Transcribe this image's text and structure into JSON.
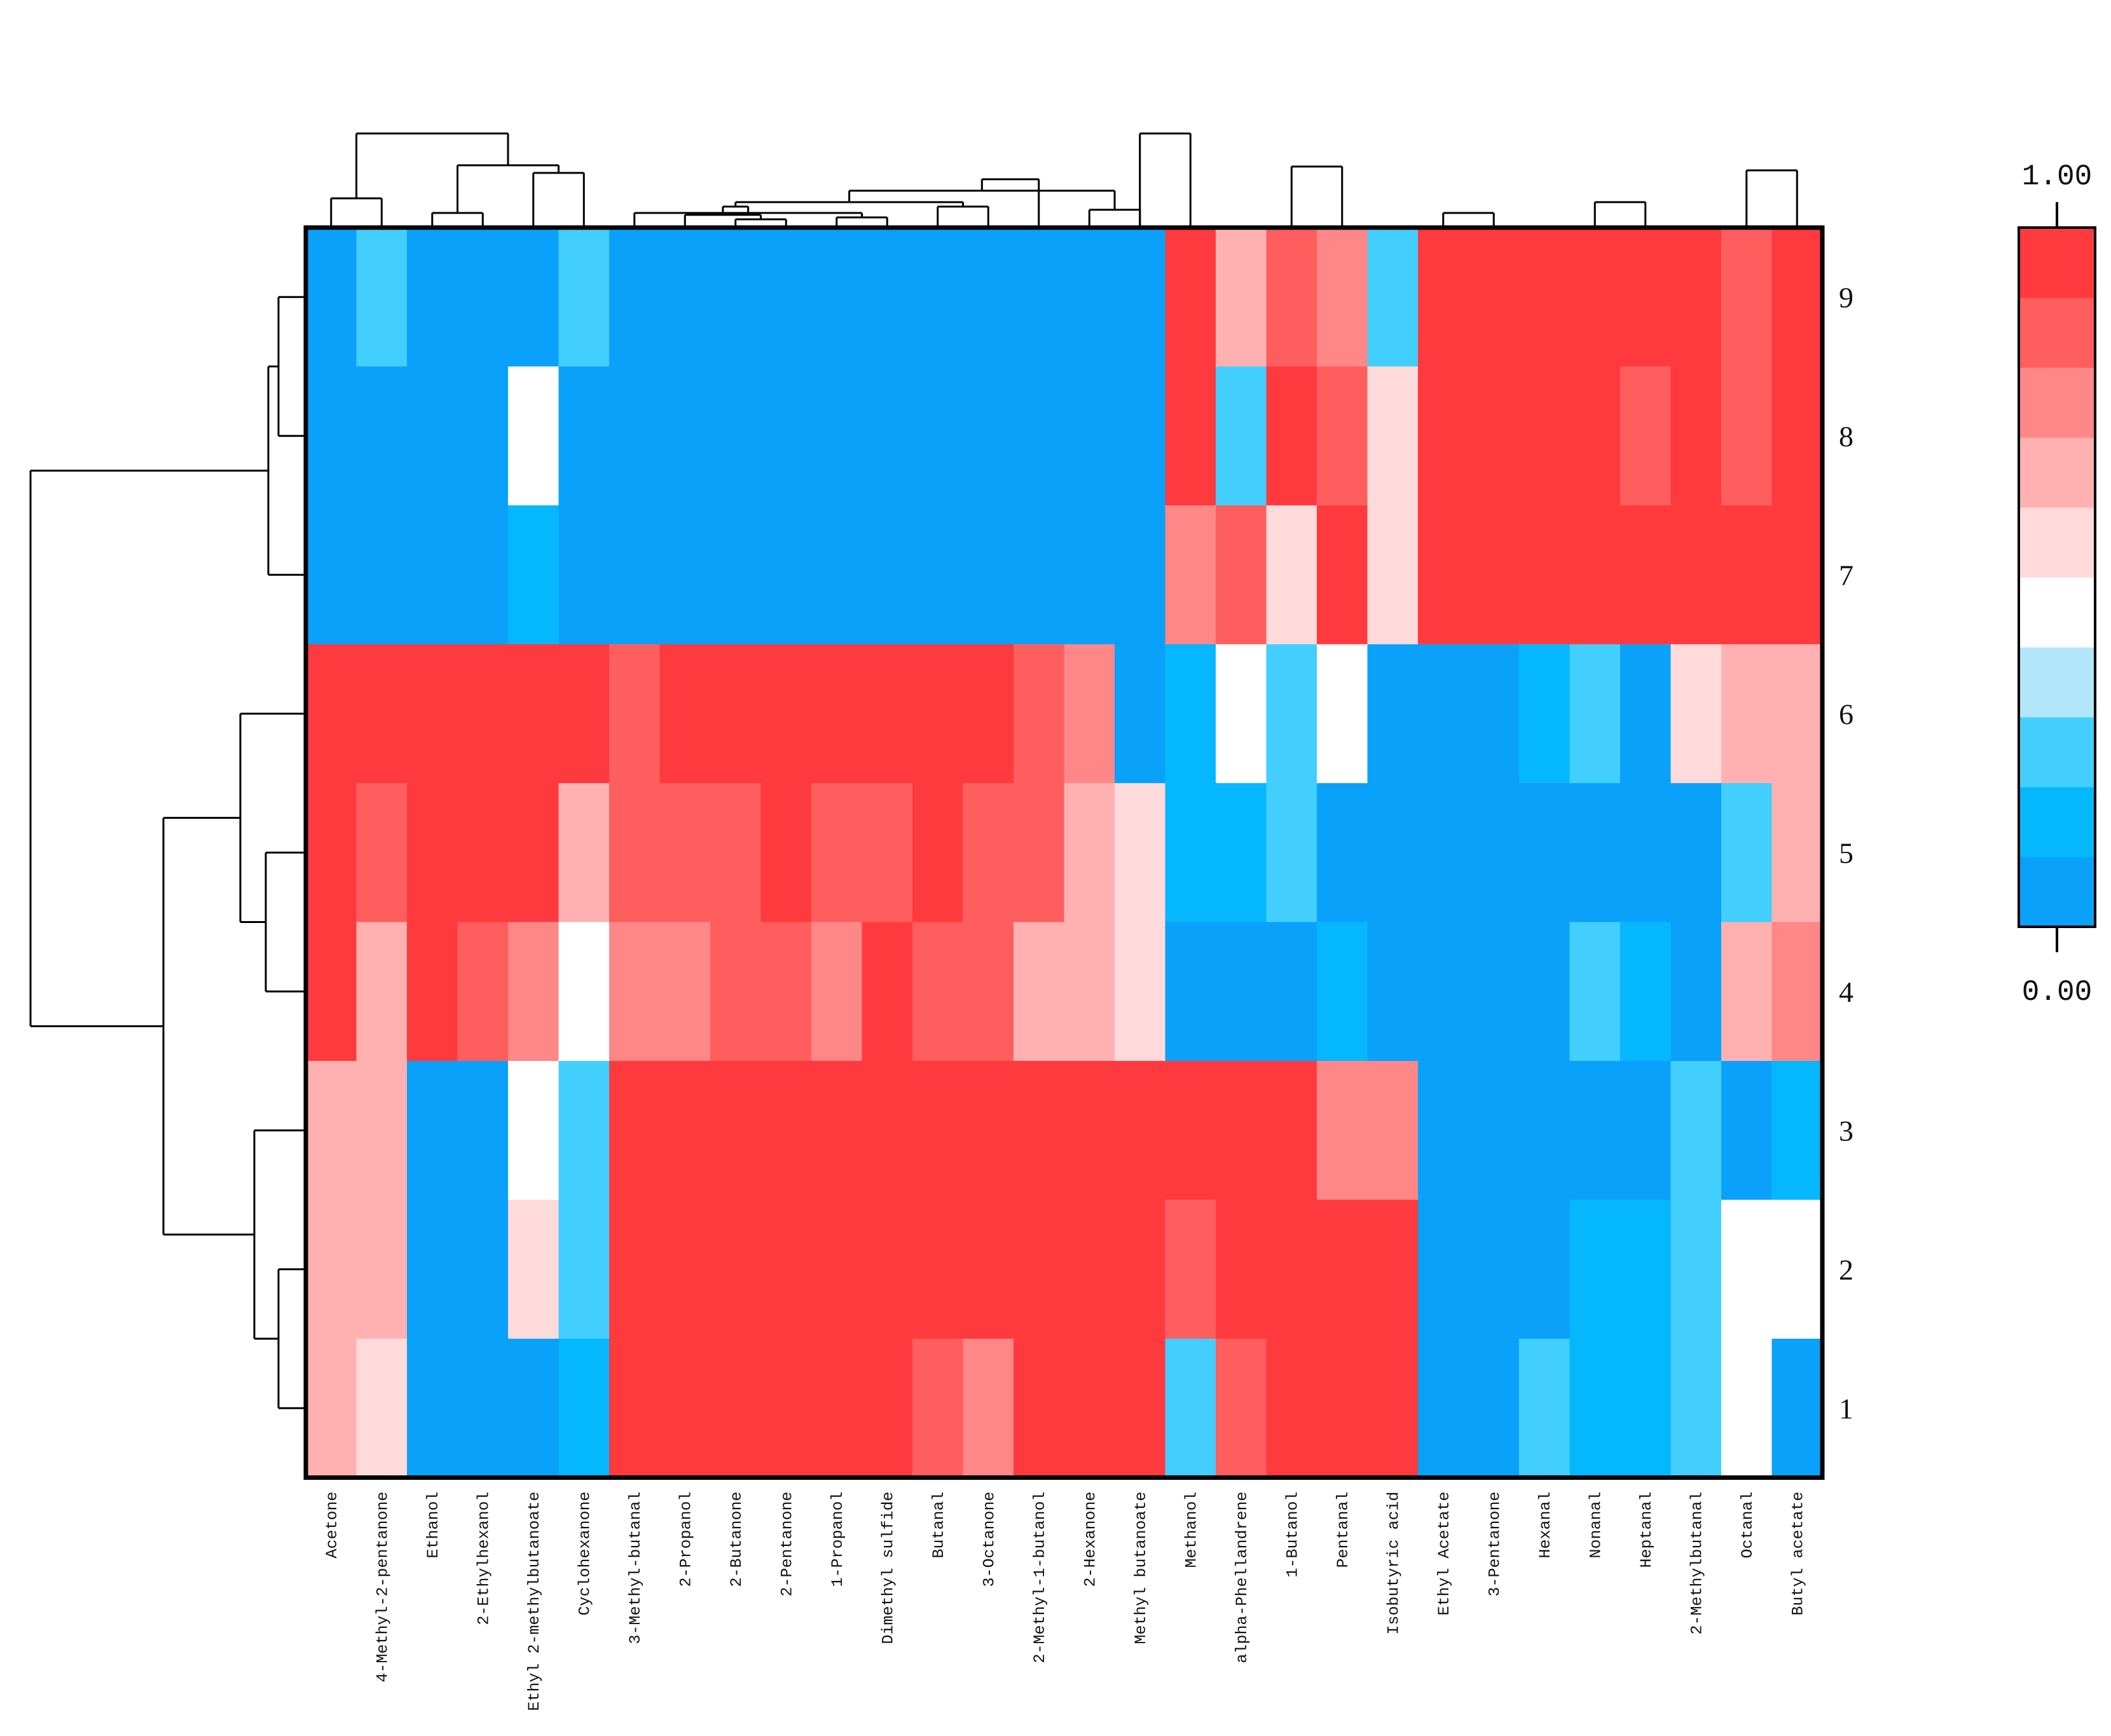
{
  "chart_data": {
    "type": "heatmap",
    "title": "",
    "xlabel": "",
    "ylabel": "",
    "columns": [
      "Acetone",
      "4-Methyl-2-pentanone",
      "Ethanol",
      "2-Ethylhexanol",
      "Ethyl 2-methylbutanoate",
      "Cyclohexanone",
      "3-Methyl-butanal",
      "2-Propanol",
      "2-Butanone",
      "2-Pentanone",
      "1-Propanol",
      "Dimethyl sulfide",
      "Butanal",
      "3-Octanone",
      "2-Methyl-1-butanol",
      "2-Hexanone",
      "Methyl butanoate",
      "Methanol",
      "alpha-Phellandrene",
      "1-Butanol",
      "Pentanal",
      "Isobutyric acid",
      "Ethyl Acetate",
      "3-Pentanone",
      "Hexanal",
      "Nonanal",
      "Heptanal",
      "2-Methylbutanal",
      "Octanal",
      "Butyl acetate"
    ],
    "rows": [
      "9",
      "8",
      "7",
      "6",
      "5",
      "4",
      "3",
      "2",
      "1"
    ],
    "values": [
      [
        0.05,
        0.2,
        0.05,
        0.05,
        0.05,
        0.2,
        0.05,
        0.05,
        0.05,
        0.05,
        0.05,
        0.05,
        0.05,
        0.05,
        0.05,
        0.05,
        0.05,
        1.0,
        0.6,
        0.8,
        0.7,
        0.25,
        1.0,
        1.0,
        1.0,
        1.0,
        1.0,
        1.0,
        0.8,
        1.0
      ],
      [
        0.05,
        0.05,
        0.05,
        0.05,
        0.4,
        0.05,
        0.05,
        0.05,
        0.05,
        0.05,
        0.05,
        0.05,
        0.05,
        0.05,
        0.05,
        0.05,
        0.05,
        1.0,
        0.25,
        0.9,
        0.8,
        0.5,
        1.0,
        1.0,
        1.0,
        1.0,
        0.8,
        1.0,
        0.8,
        0.9
      ],
      [
        0.05,
        0.05,
        0.05,
        0.05,
        0.15,
        0.05,
        0.05,
        0.05,
        0.05,
        0.05,
        0.05,
        0.05,
        0.05,
        0.05,
        0.05,
        0.05,
        0.05,
        0.7,
        0.8,
        0.5,
        0.9,
        0.5,
        1.0,
        1.0,
        1.0,
        1.0,
        0.9,
        1.0,
        1.0,
        1.0
      ],
      [
        1.0,
        1.0,
        1.0,
        1.0,
        1.0,
        1.0,
        0.8,
        0.9,
        0.9,
        0.9,
        1.0,
        1.0,
        1.0,
        1.0,
        0.8,
        0.7,
        0.05,
        0.15,
        0.4,
        0.25,
        0.4,
        0.05,
        0.05,
        0.05,
        0.15,
        0.25,
        0.05,
        0.5,
        0.6,
        0.6
      ],
      [
        1.0,
        0.8,
        0.9,
        0.9,
        0.9,
        0.6,
        0.8,
        0.8,
        0.8,
        0.9,
        0.8,
        0.8,
        0.9,
        0.8,
        0.8,
        0.6,
        0.5,
        0.15,
        0.15,
        0.25,
        0.05,
        0.05,
        0.05,
        0.05,
        0.05,
        0.05,
        0.05,
        0.05,
        0.25,
        0.6
      ],
      [
        0.9,
        0.6,
        0.9,
        0.8,
        0.7,
        0.4,
        0.7,
        0.7,
        0.8,
        0.8,
        0.7,
        0.9,
        0.8,
        0.8,
        0.6,
        0.6,
        0.5,
        0.05,
        0.05,
        0.05,
        0.15,
        0.05,
        0.05,
        0.05,
        0.05,
        0.25,
        0.15,
        0.05,
        0.6,
        0.7
      ],
      [
        0.6,
        0.6,
        0.05,
        0.05,
        0.4,
        0.25,
        1.0,
        1.0,
        1.0,
        1.0,
        1.0,
        1.0,
        0.9,
        0.9,
        0.9,
        1.0,
        1.0,
        1.0,
        0.9,
        0.9,
        0.7,
        0.7,
        0.05,
        0.05,
        0.05,
        0.05,
        0.05,
        0.25,
        0.05,
        0.15
      ],
      [
        0.6,
        0.6,
        0.05,
        0.05,
        0.5,
        0.25,
        1.0,
        1.0,
        1.0,
        1.0,
        1.0,
        1.0,
        0.9,
        0.9,
        1.0,
        1.0,
        1.0,
        0.8,
        1.0,
        1.0,
        0.9,
        1.0,
        0.05,
        0.05,
        0.05,
        0.15,
        0.15,
        0.25,
        0.4,
        0.4
      ],
      [
        0.6,
        0.5,
        0.05,
        0.05,
        0.05,
        0.15,
        1.0,
        1.0,
        1.0,
        1.0,
        1.0,
        1.0,
        0.8,
        0.7,
        0.9,
        0.9,
        0.9,
        0.25,
        0.8,
        1.0,
        1.0,
        1.0,
        0.05,
        0.05,
        0.25,
        0.15,
        0.15,
        0.25,
        0.4,
        0.05
      ]
    ],
    "colorbar": {
      "min_label": "0.00",
      "max_label": "1.00",
      "colors": [
        "#0AA1FB",
        "#05B7FD",
        "#42CFFD",
        "#B2E6FB",
        "#FFFFFF",
        "#FFDADA",
        "#FFB1B1",
        "#FF8787",
        "#FF5E5E",
        "#FF3A3E"
      ]
    }
  }
}
